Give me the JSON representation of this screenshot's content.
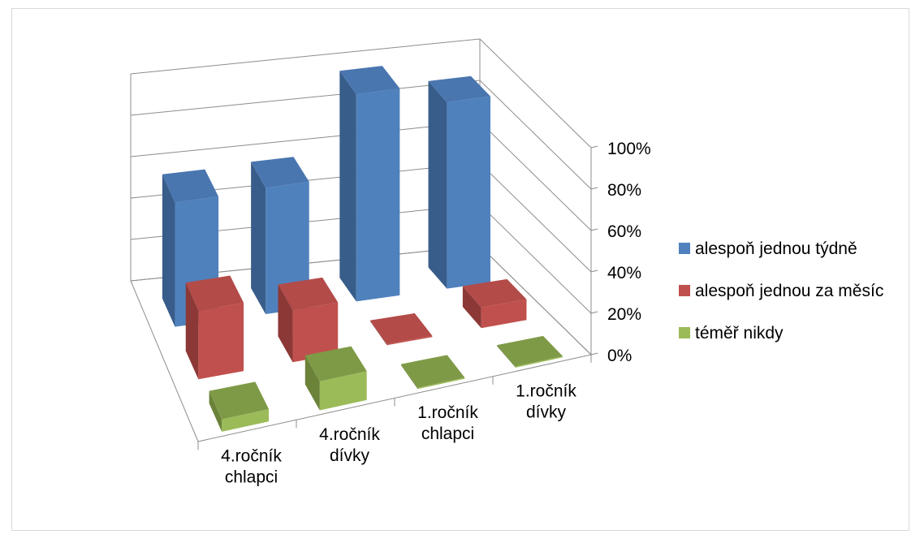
{
  "chart_data": {
    "type": "bar",
    "categories": [
      "4.ročník chlapci",
      "4.ročník dívky",
      "1.ročník chlapci",
      "1.ročník dívky"
    ],
    "category_lines": [
      [
        "4.ročník",
        "chlapci"
      ],
      [
        "4.ročník",
        "dívky"
      ],
      [
        "1.ročník",
        "chlapci"
      ],
      [
        "1.ročník",
        "dívky"
      ]
    ],
    "series": [
      {
        "name": "alespoň jednou týdně",
        "values": [
          60,
          61,
          100,
          90
        ]
      },
      {
        "name": "alespoň jednou za měsíc",
        "values": [
          33,
          25,
          0,
          10
        ]
      },
      {
        "name": "téměř nikdy",
        "values": [
          6,
          14,
          0,
          0
        ]
      }
    ],
    "ylim": [
      0,
      100
    ],
    "yticks": [
      "0%",
      "20%",
      "40%",
      "60%",
      "80%",
      "100%"
    ],
    "grid": true,
    "legend_position": "right",
    "colors": {
      "series_front": [
        "#4f81bd",
        "#c0504d",
        "#9bbb59"
      ],
      "series_top": [
        "#4a76b0",
        "#b34b48",
        "#7f9a47"
      ],
      "series_side": [
        "#385d8a",
        "#8c3836",
        "#6b8239"
      ]
    }
  }
}
